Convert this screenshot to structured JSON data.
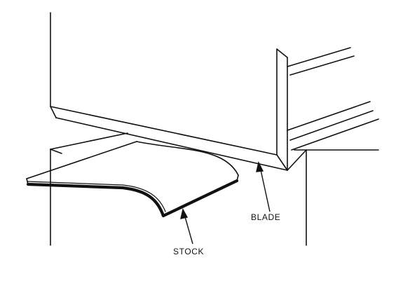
{
  "labels": {
    "blade": "BLADE",
    "stock": "STOCK"
  },
  "colors": {
    "ink": "#111111",
    "background": "#ffffff"
  }
}
